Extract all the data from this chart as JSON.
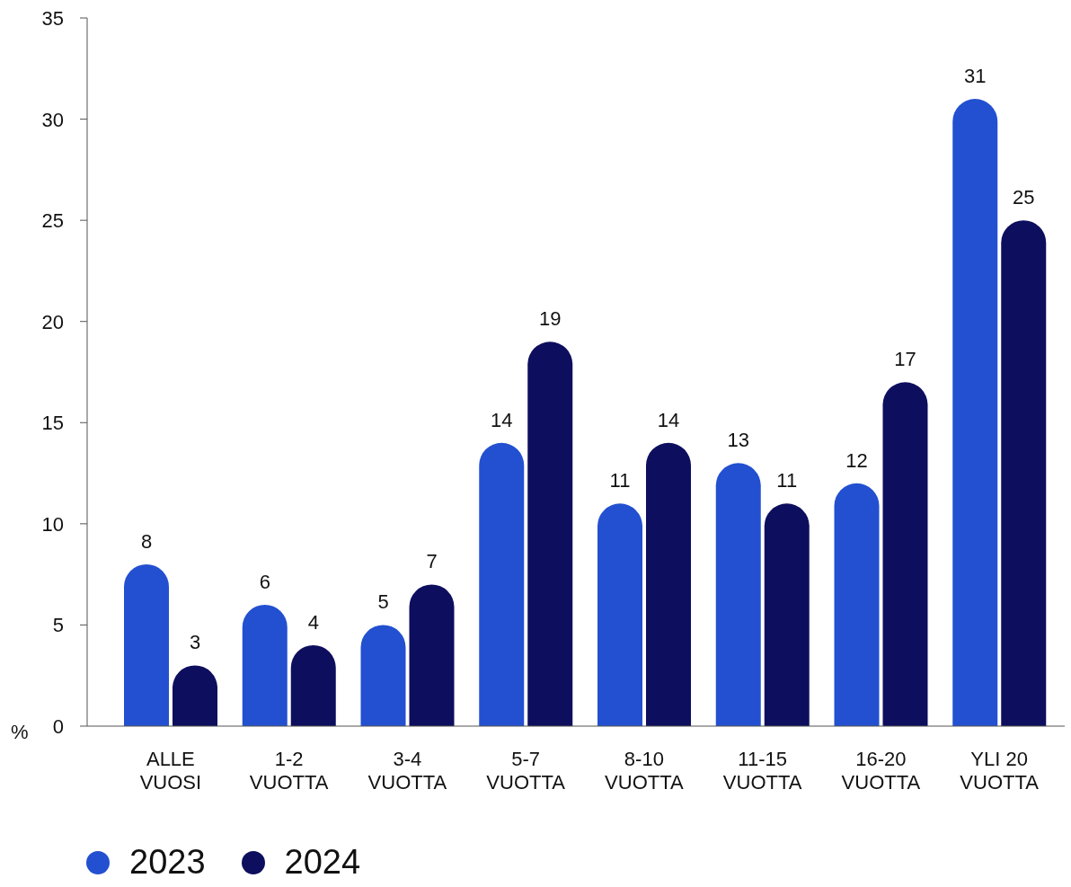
{
  "chart_data": {
    "type": "bar",
    "ylabel": "%",
    "categories": [
      "ALLE VUOSI",
      "1-2 VUOTTA",
      "3-4 VUOTTA",
      "5-7 VUOTTA",
      "8-10 VUOTTA",
      "11-15 VUOTTA",
      "16-20 VUOTTA",
      "YLI 20 VUOTTA"
    ],
    "series": [
      {
        "name": "2023",
        "color": "#2350d0",
        "values": [
          8,
          6,
          5,
          14,
          11,
          13,
          12,
          31
        ]
      },
      {
        "name": "2024",
        "color": "#0e0e5e",
        "values": [
          3,
          4,
          7,
          19,
          14,
          11,
          17,
          25
        ]
      }
    ],
    "ylim": [
      0,
      35
    ],
    "yticks": [
      0,
      5,
      10,
      15,
      20,
      25,
      30,
      35
    ],
    "data_labels": true,
    "legend": "bottom left",
    "grid": false
  }
}
